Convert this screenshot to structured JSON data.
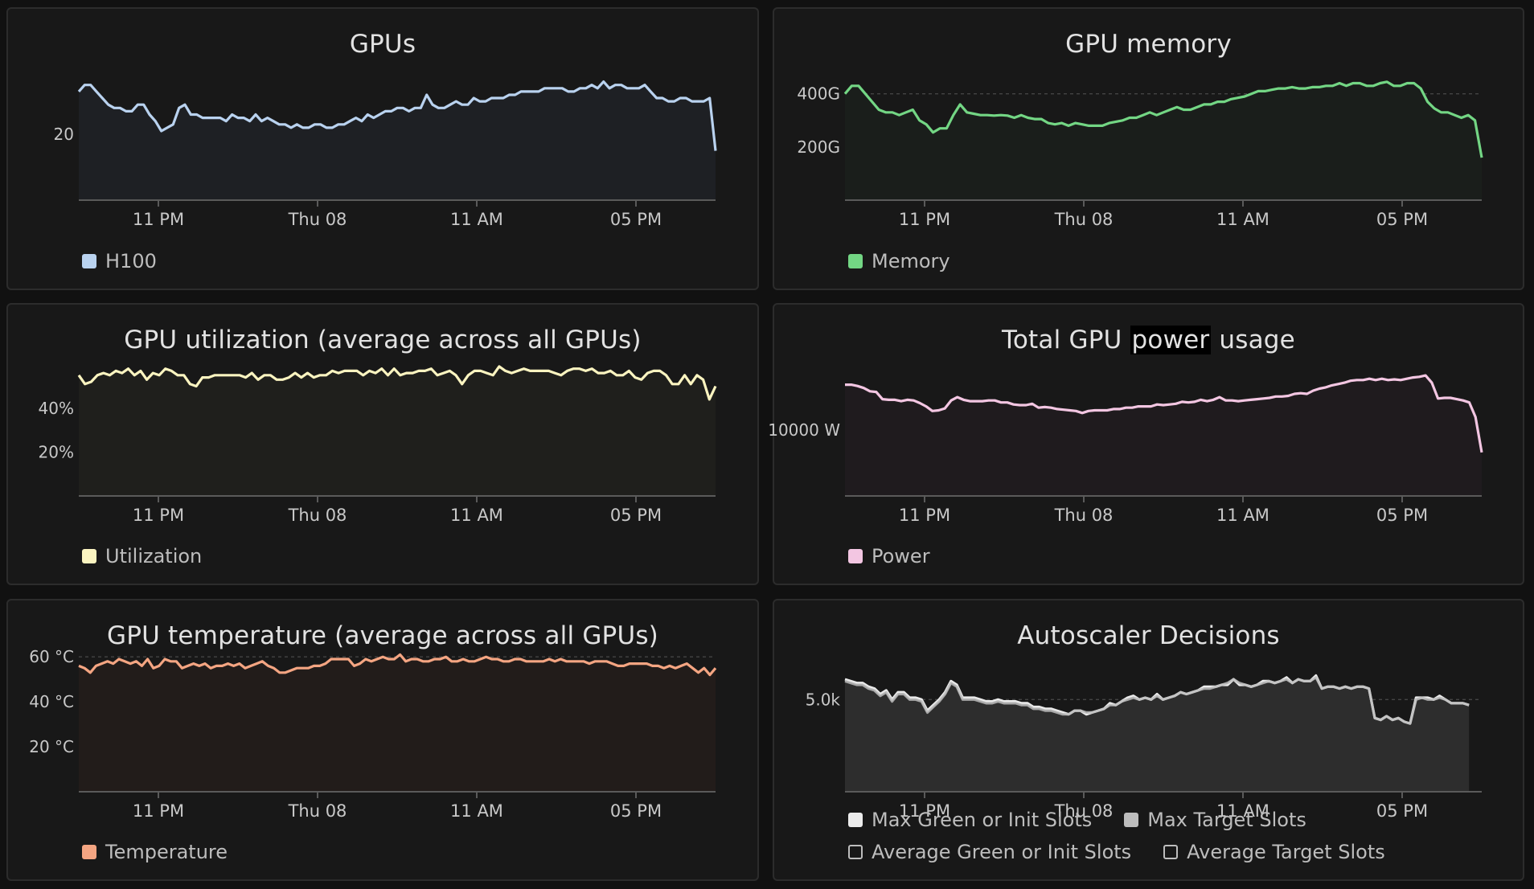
{
  "panels": [
    {
      "title_parts": [
        "GPUs"
      ],
      "legend": [
        {
          "label": "H100",
          "color": "#b9d2ef"
        }
      ]
    },
    {
      "title_parts": [
        "GPU memory"
      ],
      "legend": [
        {
          "label": "Memory",
          "color": "#73d684"
        }
      ]
    },
    {
      "title_parts": [
        "GPU utilization (average across all GPUs)"
      ],
      "legend": [
        {
          "label": "Utilization",
          "color": "#fbf4c0"
        }
      ]
    },
    {
      "title_parts": [
        "Total GPU ",
        "power",
        " usage"
      ],
      "title_highlight_index": 1,
      "legend": [
        {
          "label": "Power",
          "color": "#f3c6e2"
        }
      ]
    },
    {
      "title_parts": [
        "GPU temperature (average across all GPUs)"
      ],
      "legend": [
        {
          "label": "Temperature",
          "color": "#f4a582"
        }
      ]
    },
    {
      "title_parts": [
        "Autoscaler Decisions"
      ],
      "legend": [
        {
          "label": "Max Green or Init Slots",
          "color": "#ececec",
          "filled": true
        },
        {
          "label": "Max Target Slots",
          "color": "#bdbdbd",
          "filled": true
        },
        {
          "label": "Average Green or Init Slots",
          "color": "#bdbdbd",
          "filled": false
        },
        {
          "label": "Average Target Slots",
          "color": "#bdbdbd",
          "filled": false
        }
      ]
    }
  ],
  "chart_data": [
    {
      "type": "area",
      "title": "GPUs",
      "x_ticks": [
        "11 PM",
        "Thu 08",
        "11 AM",
        "05 PM"
      ],
      "y_ticks": [
        {
          "value": 20,
          "label": "20"
        }
      ],
      "ylim": [
        0,
        42
      ],
      "grid": true,
      "legend_position": "bottom-left",
      "series": [
        {
          "name": "H100",
          "color": "#b9d2ef",
          "values": [
            33,
            35,
            35,
            33,
            31,
            29,
            28,
            28,
            27,
            27,
            29,
            29,
            26,
            24,
            21,
            22,
            23,
            28,
            29,
            26,
            26,
            25,
            25,
            25,
            25,
            24,
            26,
            25,
            25,
            24,
            26,
            24,
            25,
            24,
            23,
            23,
            22,
            23,
            22,
            22,
            23,
            23,
            22,
            22,
            23,
            23,
            24,
            25,
            24,
            26,
            25,
            26,
            27,
            27,
            28,
            28,
            27,
            28,
            28,
            32,
            29,
            28,
            28,
            29,
            30,
            29,
            29,
            31,
            30,
            30,
            31,
            31,
            31,
            32,
            32,
            33,
            33,
            33,
            33,
            34,
            34,
            34,
            34,
            33,
            33,
            34,
            34,
            35,
            34,
            36,
            34,
            35,
            35,
            34,
            34,
            34,
            35,
            33,
            31,
            31,
            30,
            30,
            31,
            31,
            30,
            30,
            30,
            31,
            15
          ]
        }
      ]
    },
    {
      "type": "area",
      "title": "GPU memory",
      "x_ticks": [
        "11 PM",
        "Thu 08",
        "11 AM",
        "05 PM"
      ],
      "y_ticks": [
        {
          "value": 200,
          "label": "200G"
        },
        {
          "value": 400,
          "label": "400G"
        }
      ],
      "ylim": [
        0,
        520
      ],
      "grid": true,
      "legend_position": "bottom-left",
      "series": [
        {
          "name": "Memory",
          "color": "#73d684",
          "values": [
            400,
            430,
            430,
            400,
            370,
            340,
            330,
            330,
            320,
            330,
            340,
            300,
            285,
            255,
            270,
            270,
            320,
            360,
            330,
            325,
            320,
            320,
            318,
            320,
            318,
            310,
            320,
            310,
            305,
            305,
            290,
            285,
            290,
            280,
            290,
            285,
            280,
            280,
            280,
            290,
            295,
            300,
            310,
            310,
            320,
            330,
            320,
            330,
            340,
            350,
            340,
            340,
            350,
            360,
            360,
            370,
            370,
            380,
            385,
            390,
            400,
            410,
            410,
            415,
            420,
            420,
            425,
            420,
            420,
            425,
            425,
            430,
            430,
            440,
            430,
            440,
            440,
            430,
            430,
            440,
            445,
            430,
            430,
            440,
            440,
            420,
            370,
            345,
            330,
            330,
            320,
            310,
            320,
            300,
            160
          ]
        }
      ]
    },
    {
      "type": "area",
      "title": "GPU utilization (average across all GPUs)",
      "x_ticks": [
        "11 PM",
        "Thu 08",
        "11 AM",
        "05 PM"
      ],
      "y_ticks": [
        {
          "value": 20,
          "label": "20%"
        },
        {
          "value": 40,
          "label": "40%"
        }
      ],
      "ylim": [
        0,
        63
      ],
      "grid": true,
      "legend_position": "bottom-left",
      "series": [
        {
          "name": "Utilization",
          "color": "#fbf4c0",
          "values": [
            55,
            51,
            52,
            55,
            56,
            55,
            57,
            56,
            58,
            55,
            57,
            53,
            56,
            55,
            58,
            57,
            55,
            55,
            51,
            50,
            54,
            54,
            55,
            55,
            55,
            55,
            55,
            54,
            56,
            53,
            55,
            55,
            53,
            53,
            54,
            56,
            54,
            56,
            54,
            55,
            55,
            57,
            56,
            57,
            57,
            57,
            55,
            57,
            56,
            58,
            55,
            58,
            55,
            56,
            56,
            57,
            57,
            58,
            55,
            56,
            57,
            55,
            51,
            55,
            57,
            57,
            56,
            55,
            59,
            57,
            56,
            57,
            58,
            57,
            57,
            57,
            57,
            56,
            55,
            57,
            58,
            58,
            57,
            58,
            56,
            56,
            57,
            55,
            55,
            57,
            54,
            53,
            56,
            57,
            57,
            55,
            51,
            51,
            55,
            51,
            55,
            53,
            44,
            50
          ]
        }
      ]
    },
    {
      "type": "area",
      "title": "Total GPU power usage",
      "x_ticks": [
        "11 PM",
        "Thu 08",
        "11 AM",
        "05 PM"
      ],
      "y_ticks": [
        {
          "value": 10000,
          "label": "10000 W"
        }
      ],
      "ylim": [
        0,
        21000
      ],
      "grid": true,
      "legend_position": "bottom-left",
      "series": [
        {
          "name": "Power",
          "color": "#f3c6e2",
          "values": [
            16900,
            16900,
            16700,
            16400,
            15900,
            15800,
            14700,
            14600,
            14600,
            14400,
            14600,
            14500,
            14100,
            13600,
            12900,
            13000,
            13300,
            14500,
            15000,
            14600,
            14400,
            14400,
            14400,
            14500,
            14500,
            14200,
            14200,
            13900,
            13800,
            13800,
            14000,
            13400,
            13500,
            13400,
            13200,
            13100,
            13000,
            12900,
            12600,
            12900,
            13000,
            13000,
            13000,
            13200,
            13200,
            13400,
            13400,
            13600,
            13600,
            13600,
            13900,
            13800,
            13900,
            14000,
            14300,
            14200,
            14300,
            14600,
            14400,
            14600,
            15000,
            14500,
            14500,
            14400,
            14500,
            14600,
            14700,
            14800,
            14900,
            15100,
            15100,
            15200,
            15500,
            15600,
            15500,
            16000,
            16300,
            16500,
            16800,
            17000,
            17200,
            17500,
            17600,
            17600,
            17800,
            17600,
            17800,
            17600,
            17700,
            17600,
            17800,
            18000,
            18100,
            18300,
            17200,
            14800,
            14900,
            14900,
            14700,
            14500,
            14200,
            12000,
            6600
          ]
        }
      ]
    },
    {
      "type": "area",
      "title": "GPU temperature (average across all GPUs)",
      "x_ticks": [
        "11 PM",
        "Thu 08",
        "11 AM",
        "05 PM"
      ],
      "y_ticks": [
        {
          "value": 20,
          "label": "20 °C"
        },
        {
          "value": 40,
          "label": "40 °C"
        },
        {
          "value": 60,
          "label": "60 °C"
        }
      ],
      "ylim": [
        0,
        61.5
      ],
      "grid": true,
      "legend_position": "bottom-left",
      "series": [
        {
          "name": "Temperature",
          "color": "#f4a582",
          "values": [
            56,
            55,
            53,
            56,
            57,
            58,
            57,
            59,
            58,
            57,
            58,
            56,
            59,
            55,
            56,
            59,
            58,
            58,
            55,
            56,
            57,
            56,
            57,
            55,
            56,
            56,
            57,
            56,
            57,
            55,
            56,
            57,
            58,
            56,
            55,
            53,
            53,
            54,
            55,
            55,
            55,
            56,
            56,
            57,
            59,
            59,
            59,
            59,
            56,
            57,
            59,
            58,
            59,
            60,
            59,
            59,
            61,
            58,
            59,
            59,
            58,
            58,
            59,
            59,
            60,
            58,
            58,
            59,
            58,
            58,
            59,
            60,
            59,
            59,
            58,
            58,
            59,
            59,
            58,
            58,
            58,
            58,
            59,
            58,
            59,
            58,
            58,
            58,
            58,
            57,
            58,
            58,
            58,
            57,
            56,
            56,
            57,
            57,
            57,
            57,
            56,
            56,
            55,
            56,
            55,
            56,
            57,
            55,
            53,
            55,
            52,
            55
          ]
        }
      ]
    },
    {
      "type": "area",
      "title": "Autoscaler Decisions",
      "x_ticks": [
        "11 PM",
        "Thu 08",
        "11 AM",
        "05 PM"
      ],
      "y_ticks": [
        {
          "value": 5000,
          "label": "5.0k"
        }
      ],
      "ylim": [
        0,
        7500
      ],
      "grid": true,
      "legend_position": "bottom-left",
      "series": [
        {
          "name": "Max Green or Init Slots",
          "color": "#ececec",
          "values": [
            6100,
            6000,
            5900,
            5900,
            5700,
            5600,
            5300,
            5500,
            5000,
            5400,
            5400,
            5100,
            5100,
            5000,
            4400,
            4700,
            5000,
            5400,
            6000,
            5800,
            5100,
            5100,
            5100,
            5000,
            4900,
            4900,
            5000,
            4900,
            4900,
            4900,
            4800,
            4800,
            4600,
            4600,
            4500,
            4500,
            4400,
            4300,
            4200,
            4400,
            4400,
            4200,
            4300,
            4400,
            4500,
            4800,
            4700,
            4900,
            5100,
            5200,
            5000,
            5100,
            5000,
            5300,
            5000,
            5100,
            5200,
            5400,
            5300,
            5400,
            5500,
            5700,
            5700,
            5700,
            5800,
            5800,
            6100,
            5800,
            5800,
            5700,
            5800,
            6000,
            6000,
            5900,
            6000,
            6200,
            5900,
            6100,
            6000,
            6000,
            6300,
            5600,
            5700,
            5700,
            5600,
            5700,
            5600,
            5700,
            5700,
            5600,
            4000,
            3900,
            4100,
            3900,
            4000,
            3800,
            3700,
            5100,
            5100,
            5100,
            5000,
            5200,
            5000,
            4800,
            4800,
            4800,
            4700
          ]
        },
        {
          "name": "Max Target Slots",
          "color": "#bdbdbd",
          "values": [
            6000,
            5900,
            5800,
            5800,
            5600,
            5500,
            5200,
            5400,
            4900,
            5300,
            5300,
            5000,
            5000,
            4900,
            4300,
            4600,
            4900,
            5300,
            5900,
            5700,
            5000,
            5000,
            5000,
            4900,
            4800,
            4800,
            4900,
            4800,
            4800,
            4800,
            4700,
            4700,
            4500,
            4500,
            4400,
            4400,
            4300,
            4200,
            4200,
            4400,
            4400,
            4300,
            4300,
            4400,
            4500,
            4700,
            4700,
            4900,
            5000,
            5100,
            5000,
            5100,
            5000,
            5200,
            5000,
            5100,
            5200,
            5400,
            5300,
            5400,
            5500,
            5600,
            5600,
            5700,
            5800,
            5900,
            6100,
            5900,
            5800,
            5700,
            5800,
            5900,
            6000,
            5900,
            6000,
            6100,
            5900,
            6100,
            6000,
            6000,
            6200,
            5600,
            5700,
            5700,
            5600,
            5700,
            5600,
            5700,
            5700,
            5600,
            4000,
            3900,
            4100,
            3900,
            4000,
            3800,
            3700,
            5000,
            5100,
            5000,
            5000,
            5100,
            5000,
            4800,
            4800,
            4800,
            4700
          ]
        }
      ]
    }
  ]
}
